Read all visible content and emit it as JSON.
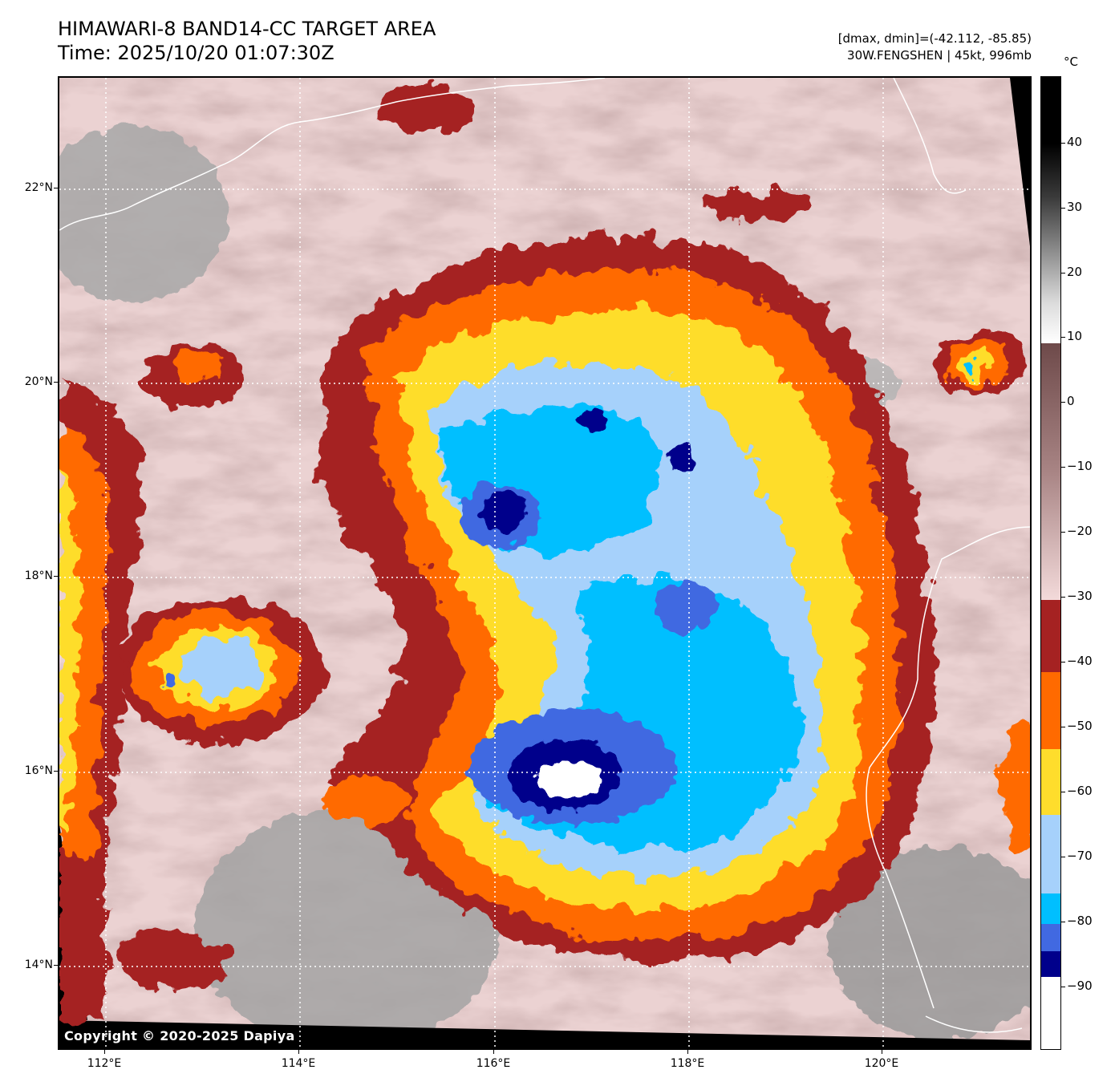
{
  "title": {
    "line1": "HIMAWARI-8 BAND14-CC TARGET AREA",
    "line2": "Time: 2025/10/20 01:07:30Z"
  },
  "meta": {
    "range": "[dmax, dmin]=(-42.112, -85.85)",
    "storm": "30W.FENGSHEN | 45kt, 996mb"
  },
  "copyright": "Copyright © 2020-2025 Dapiya",
  "axes": {
    "lat_labels": [
      "22°N",
      "20°N",
      "18°N",
      "16°N",
      "14°N"
    ],
    "lon_labels": [
      "112°E",
      "114°E",
      "116°E",
      "118°E",
      "120°E"
    ]
  },
  "colorbar": {
    "unit": "°C",
    "ticks": [
      "40",
      "30",
      "20",
      "10",
      "0",
      "−10",
      "−20",
      "−30",
      "−40",
      "−50",
      "−60",
      "−70",
      "−80",
      "−90"
    ]
  },
  "colors": {
    "c_below_minus85": "#ffffff",
    "c_minus85": "#00008b",
    "c_minus80": "#4169e1",
    "c_minus75": "#00bfff",
    "c_minus70": "#a6d1fb",
    "c_minus65": "#fedd2c",
    "c_minus55": "#ff6a00",
    "c_minus45": "#a52222",
    "warm_cloud": "#ebd2d2",
    "mid_cloud": "#9c7070"
  }
}
